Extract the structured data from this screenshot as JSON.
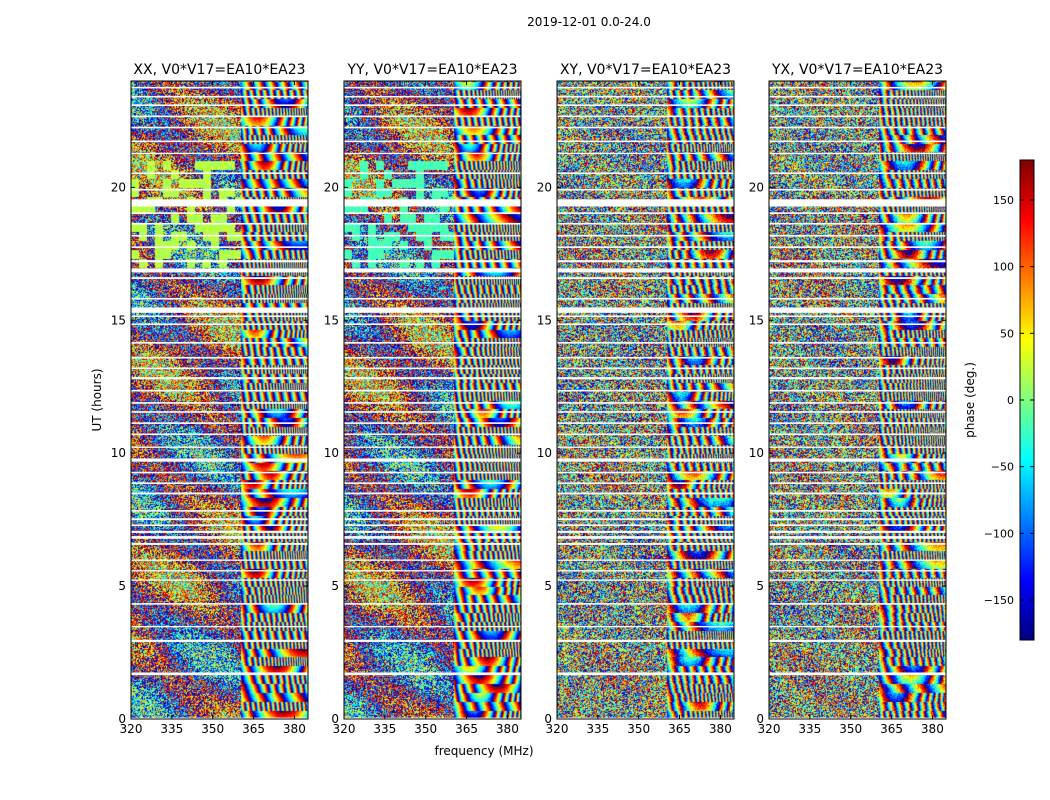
{
  "figure_title": "2019-12-01 0.0-24.0",
  "chart_data": [
    {
      "type": "heatmap",
      "title": "XX, V0*V17=EA10*EA23",
      "xlabel": "",
      "ylabel": "UT (hours)",
      "xlim": [
        320,
        385
      ],
      "ylim": [
        0,
        24
      ],
      "x_ticks": [
        320,
        335,
        350,
        365,
        380
      ],
      "y_ticks": [
        0,
        5,
        10,
        15,
        20
      ],
      "color_quantity": "phase (deg.)",
      "color_range": [
        -180,
        180
      ]
    },
    {
      "type": "heatmap",
      "title": "YY, V0*V17=EA10*EA23",
      "xlabel": "frequency (MHz)",
      "ylabel": "",
      "xlim": [
        320,
        385
      ],
      "ylim": [
        0,
        24
      ],
      "x_ticks": [
        320,
        335,
        350,
        365,
        380
      ],
      "y_ticks": [
        0,
        5,
        10,
        15,
        20
      ],
      "color_quantity": "phase (deg.)",
      "color_range": [
        -180,
        180
      ]
    },
    {
      "type": "heatmap",
      "title": "XY, V0*V17=EA10*EA23",
      "xlabel": "",
      "ylabel": "",
      "xlim": [
        320,
        385
      ],
      "ylim": [
        0,
        24
      ],
      "x_ticks": [
        320,
        335,
        350,
        365,
        380
      ],
      "y_ticks": [
        0,
        5,
        10,
        15,
        20
      ],
      "color_quantity": "phase (deg.)",
      "color_range": [
        -180,
        180
      ]
    },
    {
      "type": "heatmap",
      "title": "YX, V0*V17=EA10*EA23",
      "xlabel": "",
      "ylabel": "",
      "xlim": [
        320,
        385
      ],
      "ylim": [
        0,
        24
      ],
      "x_ticks": [
        320,
        335,
        350,
        365,
        380
      ],
      "y_ticks": [
        0,
        5,
        10,
        15,
        20
      ],
      "color_quantity": "phase (deg.)",
      "color_range": [
        -180,
        180
      ]
    }
  ],
  "flagged_time_ranges_hours": [
    [
      0.0,
      0.05
    ],
    [
      1.65,
      1.75
    ],
    [
      2.9,
      2.98
    ],
    [
      3.45,
      3.5
    ],
    [
      4.3,
      4.36
    ],
    [
      5.2,
      5.25
    ],
    [
      5.55,
      5.6
    ],
    [
      5.95,
      6.0
    ],
    [
      6.55,
      6.62
    ],
    [
      6.78,
      6.88
    ],
    [
      7.0,
      7.08
    ],
    [
      7.26,
      7.32
    ],
    [
      7.48,
      7.55
    ],
    [
      7.8,
      7.86
    ],
    [
      8.45,
      8.52
    ],
    [
      8.84,
      8.9
    ],
    [
      9.24,
      9.3
    ],
    [
      9.68,
      9.8
    ],
    [
      10.2,
      10.25
    ],
    [
      10.68,
      10.74
    ],
    [
      11.1,
      11.16
    ],
    [
      11.52,
      11.58
    ],
    [
      11.86,
      11.92
    ],
    [
      12.32,
      12.38
    ],
    [
      12.78,
      12.86
    ],
    [
      13.16,
      13.22
    ],
    [
      13.56,
      13.62
    ],
    [
      14.12,
      14.18
    ],
    [
      14.82,
      14.88
    ],
    [
      15.12,
      15.18
    ],
    [
      15.28,
      15.48
    ],
    [
      15.78,
      15.84
    ],
    [
      16.55,
      16.62
    ],
    [
      16.8,
      16.95
    ],
    [
      17.18,
      17.26
    ],
    [
      17.72,
      17.78
    ],
    [
      18.15,
      18.21
    ],
    [
      18.6,
      18.66
    ],
    [
      19.0,
      19.06
    ],
    [
      19.28,
      19.55
    ],
    [
      19.88,
      19.94
    ],
    [
      20.5,
      20.56
    ],
    [
      21.25,
      21.3
    ],
    [
      21.7,
      21.76
    ],
    [
      22.22,
      22.28
    ],
    [
      22.64,
      22.7
    ],
    [
      23.06,
      23.12
    ],
    [
      23.38,
      23.44
    ],
    [
      23.72,
      23.78
    ]
  ],
  "colorbar": {
    "label": "phase (deg.)",
    "range": [
      -180,
      180
    ],
    "ticks": [
      -150,
      -100,
      -50,
      0,
      50,
      100,
      150
    ],
    "tick_labels": [
      "−150",
      "−100",
      "−50",
      "0",
      "50",
      "100",
      "150"
    ],
    "colormap": [
      "#00007f",
      "#0000ff",
      "#007fff",
      "#00ffff",
      "#7fff7f",
      "#ffff00",
      "#ff7f00",
      "#ff0000",
      "#7f0000"
    ]
  }
}
